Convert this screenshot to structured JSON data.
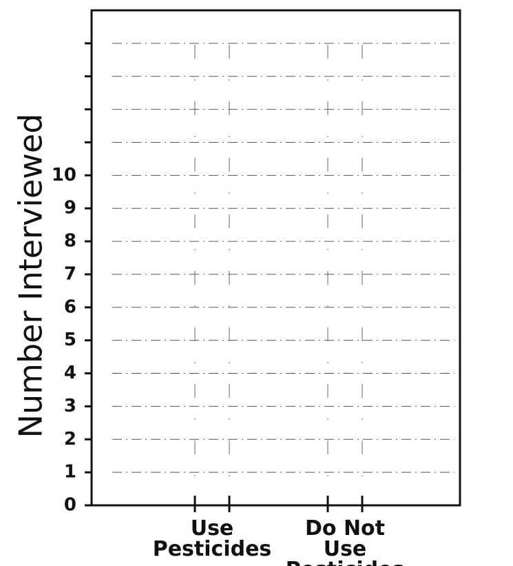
{
  "chart_data": {
    "type": "bar",
    "y_label": "Number Interviewed",
    "categories": [
      "Use\nPesticides",
      "Do Not\nUse Pesticides"
    ],
    "ylim": [
      0,
      15
    ],
    "yticks": [
      0,
      1,
      2,
      3,
      4,
      5,
      6,
      7,
      8,
      9,
      10,
      {
        "value": 11,
        "label": null
      },
      {
        "value": 12,
        "label": null
      },
      {
        "value": 13,
        "label": null
      },
      {
        "value": 14,
        "label": null
      }
    ],
    "grid": true
  }
}
